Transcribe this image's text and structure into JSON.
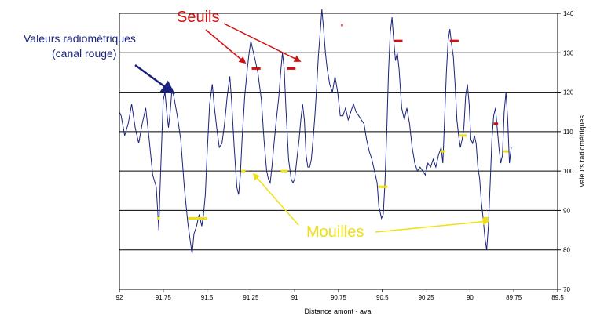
{
  "chart_data": {
    "type": "line",
    "xlabel": "Distance amont - aval",
    "ylabel": "Valeurs radiométriques",
    "xlim": [
      92,
      89.5
    ],
    "ylim": [
      70,
      140
    ],
    "x_ticks": [
      "92",
      "91,75",
      "91,5",
      "91,25",
      "91",
      "90,75",
      "90,5",
      "90,25",
      "90",
      "89,75",
      "89,5"
    ],
    "y_ticks": [
      "70",
      "80",
      "90",
      "100",
      "110",
      "120",
      "130",
      "140"
    ],
    "grid": "horizontal",
    "colors": {
      "line": "#1a237e",
      "seuil": "#d01010",
      "mouille": "#f0e010",
      "grid": "#000000"
    },
    "series": [
      {
        "values": [
          [
            92.0,
            115
          ],
          [
            91.99,
            114
          ],
          [
            91.97,
            109
          ],
          [
            91.95,
            112
          ],
          [
            91.93,
            117
          ],
          [
            91.91,
            111
          ],
          [
            91.89,
            107
          ],
          [
            91.87,
            112
          ],
          [
            91.85,
            116
          ],
          [
            91.83,
            108
          ],
          [
            91.81,
            99
          ],
          [
            91.79,
            96
          ],
          [
            91.775,
            85
          ],
          [
            91.77,
            93
          ],
          [
            91.76,
            106
          ],
          [
            91.75,
            118
          ],
          [
            91.74,
            120
          ],
          [
            91.73,
            115
          ],
          [
            91.72,
            111
          ],
          [
            91.71,
            115
          ],
          [
            91.7,
            121
          ],
          [
            91.69,
            119
          ],
          [
            91.67,
            114
          ],
          [
            91.65,
            108
          ],
          [
            91.63,
            96
          ],
          [
            91.61,
            87
          ],
          [
            91.595,
            82
          ],
          [
            91.585,
            79
          ],
          [
            91.575,
            84
          ],
          [
            91.56,
            86
          ],
          [
            91.545,
            89
          ],
          [
            91.53,
            86
          ],
          [
            91.52,
            89
          ],
          [
            91.51,
            94
          ],
          [
            91.5,
            104
          ],
          [
            91.485,
            117
          ],
          [
            91.47,
            122
          ],
          [
            91.46,
            117
          ],
          [
            91.445,
            111
          ],
          [
            91.43,
            106
          ],
          [
            91.415,
            107
          ],
          [
            91.4,
            112
          ],
          [
            91.385,
            119
          ],
          [
            91.37,
            124
          ],
          [
            91.36,
            118
          ],
          [
            91.345,
            106
          ],
          [
            91.33,
            96
          ],
          [
            91.32,
            94
          ],
          [
            91.31,
            99
          ],
          [
            91.3,
            108
          ],
          [
            91.285,
            119
          ],
          [
            91.27,
            126
          ],
          [
            91.26,
            130
          ],
          [
            91.25,
            133
          ],
          [
            91.24,
            131
          ],
          [
            91.225,
            128
          ],
          [
            91.21,
            125
          ],
          [
            91.19,
            118
          ],
          [
            91.175,
            108
          ],
          [
            91.16,
            100
          ],
          [
            91.15,
            98
          ],
          [
            91.14,
            97
          ],
          [
            91.13,
            101
          ],
          [
            91.12,
            106
          ],
          [
            91.105,
            113
          ],
          [
            91.09,
            119
          ],
          [
            91.08,
            125
          ],
          [
            91.07,
            130
          ],
          [
            91.06,
            126
          ],
          [
            91.05,
            116
          ],
          [
            91.035,
            103
          ],
          [
            91.02,
            98
          ],
          [
            91.01,
            97
          ],
          [
            91.0,
            98
          ],
          [
            90.99,
            102
          ],
          [
            90.975,
            108
          ],
          [
            90.965,
            113
          ],
          [
            90.955,
            117
          ],
          [
            90.945,
            113
          ],
          [
            90.935,
            104
          ],
          [
            90.925,
            101
          ],
          [
            90.915,
            101
          ],
          [
            90.905,
            103
          ],
          [
            90.895,
            108
          ],
          [
            90.885,
            114
          ],
          [
            90.875,
            121
          ],
          [
            90.865,
            129
          ],
          [
            90.855,
            135
          ],
          [
            90.845,
            141
          ],
          [
            90.835,
            136
          ],
          [
            90.825,
            130
          ],
          [
            90.815,
            126
          ],
          [
            90.8,
            122
          ],
          [
            90.785,
            120
          ],
          [
            90.77,
            124
          ],
          [
            90.755,
            120
          ],
          [
            90.74,
            114
          ],
          [
            90.725,
            114
          ],
          [
            90.71,
            116
          ],
          [
            90.695,
            113
          ],
          [
            90.68,
            115
          ],
          [
            90.665,
            117
          ],
          [
            90.65,
            115
          ],
          [
            90.635,
            114
          ],
          [
            90.62,
            113
          ],
          [
            90.605,
            112
          ],
          [
            90.59,
            108
          ],
          [
            90.575,
            105
          ],
          [
            90.56,
            103
          ],
          [
            90.545,
            100
          ],
          [
            90.53,
            97
          ],
          [
            90.52,
            91
          ],
          [
            90.505,
            88
          ],
          [
            90.495,
            89
          ],
          [
            90.485,
            97
          ],
          [
            90.475,
            110
          ],
          [
            90.465,
            125
          ],
          [
            90.455,
            135
          ],
          [
            90.445,
            139
          ],
          [
            90.435,
            133
          ],
          [
            90.425,
            128
          ],
          [
            90.415,
            130
          ],
          [
            90.405,
            126
          ],
          [
            90.39,
            116
          ],
          [
            90.375,
            113
          ],
          [
            90.36,
            116
          ],
          [
            90.345,
            112
          ],
          [
            90.33,
            106
          ],
          [
            90.315,
            102
          ],
          [
            90.3,
            100
          ],
          [
            90.285,
            101
          ],
          [
            90.27,
            100
          ],
          [
            90.255,
            99
          ],
          [
            90.24,
            102
          ],
          [
            90.225,
            101
          ],
          [
            90.21,
            103
          ],
          [
            90.195,
            101
          ],
          [
            90.18,
            104
          ],
          [
            90.165,
            106
          ],
          [
            90.155,
            102
          ],
          [
            90.145,
            113
          ],
          [
            90.135,
            125
          ],
          [
            90.125,
            133
          ],
          [
            90.115,
            136
          ],
          [
            90.105,
            132
          ],
          [
            90.095,
            129
          ],
          [
            90.085,
            122
          ],
          [
            90.075,
            113
          ],
          [
            90.065,
            109
          ],
          [
            90.055,
            106
          ],
          [
            90.045,
            108
          ],
          [
            90.035,
            111
          ],
          [
            90.025,
            119
          ],
          [
            90.015,
            122
          ],
          [
            90.005,
            117
          ],
          [
            89.995,
            108
          ],
          [
            89.985,
            107
          ],
          [
            89.975,
            109
          ],
          [
            89.965,
            107
          ],
          [
            89.955,
            101
          ],
          [
            89.945,
            98
          ],
          [
            89.935,
            92
          ],
          [
            89.925,
            88
          ],
          [
            89.915,
            83
          ],
          [
            89.905,
            80
          ],
          [
            89.895,
            86
          ],
          [
            89.885,
            97
          ],
          [
            89.875,
            108
          ],
          [
            89.865,
            114
          ],
          [
            89.855,
            116
          ],
          [
            89.845,
            111
          ],
          [
            89.835,
            106
          ],
          [
            89.825,
            102
          ],
          [
            89.815,
            104
          ],
          [
            89.805,
            115
          ],
          [
            89.795,
            120
          ],
          [
            89.785,
            113
          ],
          [
            89.775,
            102
          ],
          [
            89.765,
            106
          ]
        ]
      }
    ],
    "seuils": [
      {
        "x": [
          91.245,
          91.195
        ],
        "y": 126
      },
      {
        "x": [
          91.045,
          90.995
        ],
        "y": 126
      },
      {
        "x": [
          90.735,
          90.725
        ],
        "y": 137
      },
      {
        "x": [
          90.435,
          90.385
        ],
        "y": 133
      },
      {
        "x": [
          90.115,
          90.065
        ],
        "y": 133
      },
      {
        "x": [
          89.865,
          89.84
        ],
        "y": 112
      }
    ],
    "mouilles": [
      {
        "x": [
          91.785,
          91.77
        ],
        "y": 88
      },
      {
        "x": [
          91.61,
          91.5
        ],
        "y": 88
      },
      {
        "x": [
          91.305,
          91.28
        ],
        "y": 100
      },
      {
        "x": [
          91.08,
          91.04
        ],
        "y": 100
      },
      {
        "x": [
          90.525,
          90.47
        ],
        "y": 96
      },
      {
        "x": [
          90.17,
          90.14
        ],
        "y": 105
      },
      {
        "x": [
          90.06,
          90.02
        ],
        "y": 109
      },
      {
        "x": [
          89.925,
          89.895
        ],
        "y": 88
      },
      {
        "x": [
          89.81,
          89.78
        ],
        "y": 105
      }
    ],
    "annotations": {
      "radiometric": {
        "line1": "Valeurs radiométriques",
        "line2": "(canal rouge)"
      },
      "seuils": "Seuils",
      "mouilles": "Mouilles"
    }
  }
}
